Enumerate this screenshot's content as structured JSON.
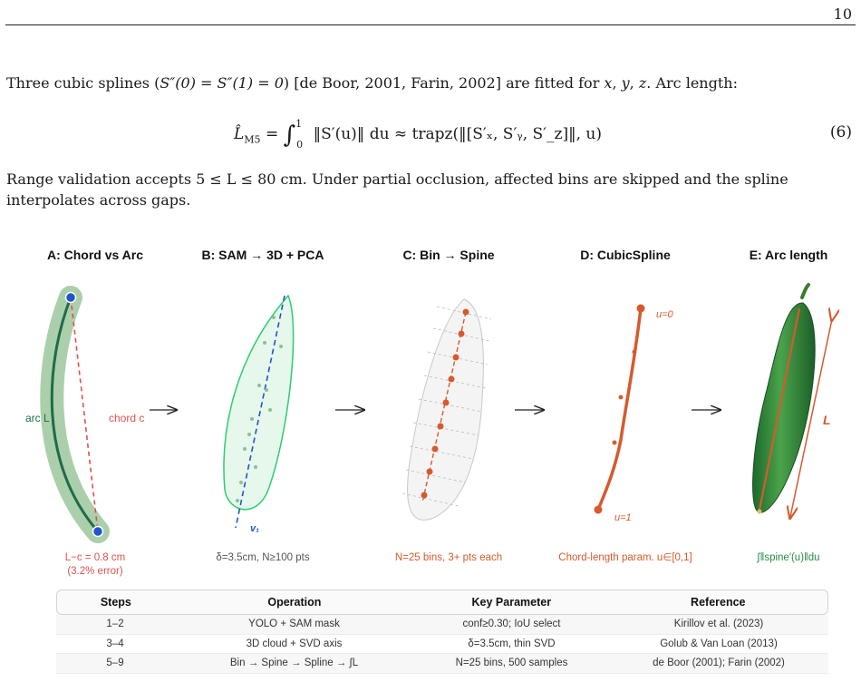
{
  "page_number": "10",
  "paragraph1": {
    "p1": "Three cubic splines (",
    "p2": "S″(0) = S″(1) = 0",
    "p3": ") [de Boor, 2001, Farin, 2002] are fitted for ",
    "x": "x",
    "y": "y",
    "z": "z",
    "p4": ". Arc length:"
  },
  "equation": {
    "lhs": "L̂",
    "lhs_sub": "M5",
    "int_upper": "1",
    "int_lower": "0",
    "integrand": "‖S′(u)‖ du ≈ trapz(‖[S′ₓ, S′ᵧ, S′_z]‖, u)",
    "number": "(6)"
  },
  "paragraph2": "Range validation accepts 5 ≤ L ≤ 80 cm. Under partial occlusion, affected bins are skipped and the spline interpolates across gaps.",
  "figure": {
    "panels": [
      {
        "title": "A: Chord vs Arc",
        "caption": "L−c = 0.8 cm\n(3.2% error)"
      },
      {
        "title": "B: SAM → 3D + PCA",
        "caption": "δ=3.5cm, N≥100 pts"
      },
      {
        "title": "C: Bin → Spine",
        "caption": "N=25 bins, 3+ pts each"
      },
      {
        "title": "D: CubicSpline",
        "caption": "Chord-length param. u∈[0,1]"
      },
      {
        "title": "E: Arc length",
        "caption": "∫‖spine′(u)‖du"
      }
    ],
    "labels": {
      "arc": "arc L",
      "chord": "chord c",
      "v1": "v₁",
      "u0": "u=0",
      "u1": "u=1",
      "L": "L"
    },
    "colors": {
      "green_dark": "#1f6b4a",
      "green_fill": "#8fbf8f",
      "red": "#e05050",
      "blue": "#2255cc",
      "orange": "#d65a2e",
      "mint_fill": "#e6f7ec",
      "mint_stroke": "#2ecc71"
    }
  },
  "table": {
    "headers": [
      "Steps",
      "Operation",
      "Key Parameter",
      "Reference"
    ],
    "rows": [
      [
        "1–2",
        "YOLO + SAM mask",
        "conf≥0.30; IoU select",
        "Kirillov et al. (2023)"
      ],
      [
        "3–4",
        "3D cloud + SVD axis",
        "δ=3.5cm, thin SVD",
        "Golub & Van Loan (2013)"
      ],
      [
        "5–9",
        "Bin → Spine → Spline → ∫L",
        "N=25 bins, 500 samples",
        "de Boor (2001); Farin (2002)"
      ]
    ]
  }
}
